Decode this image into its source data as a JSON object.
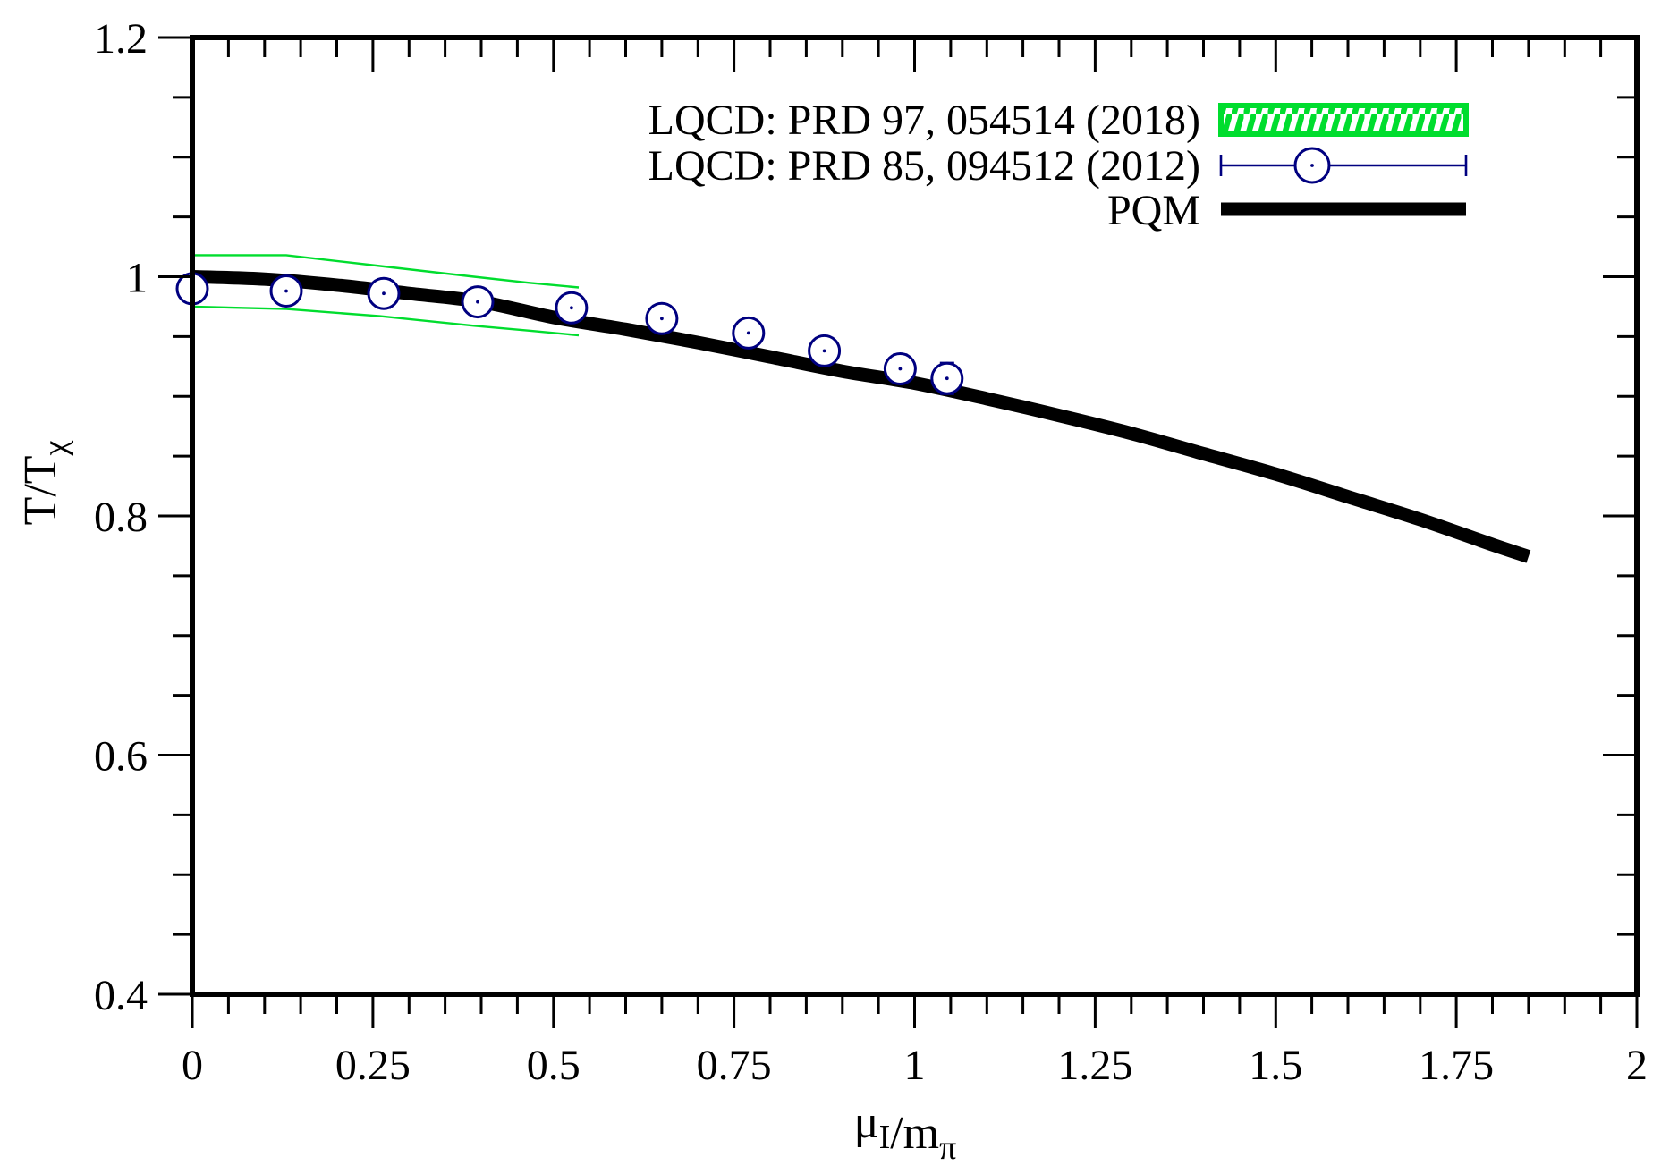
{
  "figure": {
    "background": "#ffffff",
    "border_color": "#000000"
  },
  "colors": {
    "band_green": "#00dd2e",
    "marker_navy": "#000080",
    "curve_black": "#000000"
  },
  "legend": {
    "entries": [
      {
        "label": "LQCD: PRD 97, 054514 (2018)",
        "symbol": "hatched-band",
        "color": "#00dd2e"
      },
      {
        "label": "LQCD: PRD 85, 094512 (2012)",
        "symbol": "errorbar-circle",
        "color": "#000080"
      },
      {
        "label": "PQM",
        "symbol": "thick-line",
        "color": "#000000"
      }
    ]
  },
  "chart_data": {
    "type": "line",
    "title": "",
    "xlabel": "mu_I/m_pi",
    "ylabel": "T/T_chi",
    "xlabel_parts": [
      {
        "text": "μ",
        "sub": false
      },
      {
        "text": "I",
        "sub": true
      },
      {
        "text": "/m",
        "sub": false
      },
      {
        "text": "π",
        "sub": true
      }
    ],
    "ylabel_parts": [
      {
        "text": "T/T",
        "sub": false
      },
      {
        "text": "χ",
        "sub": true
      }
    ],
    "xlim": [
      0,
      2
    ],
    "ylim": [
      0.4,
      1.2
    ],
    "x_ticks": [
      {
        "v": 0,
        "label": "0"
      },
      {
        "v": 0.25,
        "label": "0.25"
      },
      {
        "v": 0.5,
        "label": "0.5"
      },
      {
        "v": 0.75,
        "label": "0.75"
      },
      {
        "v": 1,
        "label": "1"
      },
      {
        "v": 1.25,
        "label": "1.25"
      },
      {
        "v": 1.5,
        "label": "1.5"
      },
      {
        "v": 1.75,
        "label": "1.75"
      },
      {
        "v": 2,
        "label": "2"
      }
    ],
    "y_ticks": [
      {
        "v": 1.2,
        "label": "1.2"
      },
      {
        "v": 1.0,
        "label": "1"
      },
      {
        "v": 0.8,
        "label": "0.8"
      },
      {
        "v": 0.6,
        "label": "0.6"
      },
      {
        "v": 0.4,
        "label": "0.4"
      }
    ],
    "x_minor_step": 0.05,
    "y_minor_step": 0.05,
    "grid": false,
    "legend_position": "top-right-inside",
    "series": [
      {
        "name": "LQCD: PRD 97, 054514 (2018)",
        "type": "band",
        "color": "#00dd2e",
        "x": [
          0.0,
          0.13,
          0.26,
          0.39,
          0.465,
          0.535
        ],
        "y_upper": [
          1.018,
          1.018,
          1.009,
          1.0,
          0.995,
          0.991
        ],
        "y_lower": [
          0.975,
          0.973,
          0.967,
          0.959,
          0.955,
          0.951
        ]
      },
      {
        "name": "LQCD: PRD 85, 094512 (2012)",
        "type": "scatter",
        "color": "#000080",
        "points": [
          {
            "x": 0.0,
            "y": 0.99,
            "err": 0.01
          },
          {
            "x": 0.13,
            "y": 0.988,
            "err": 0.008
          },
          {
            "x": 0.265,
            "y": 0.986,
            "err": 0.012
          },
          {
            "x": 0.395,
            "y": 0.979,
            "err": 0.01
          },
          {
            "x": 0.525,
            "y": 0.974,
            "err": 0.01
          },
          {
            "x": 0.65,
            "y": 0.965,
            "err": 0.008
          },
          {
            "x": 0.77,
            "y": 0.953,
            "err": 0.008
          },
          {
            "x": 0.875,
            "y": 0.938,
            "err": 0.008
          },
          {
            "x": 0.98,
            "y": 0.923,
            "err": 0.012
          },
          {
            "x": 1.045,
            "y": 0.915,
            "err": 0.013
          }
        ]
      },
      {
        "name": "PQM",
        "type": "line",
        "color": "#000000",
        "x": [
          0,
          0.1,
          0.2,
          0.3,
          0.4,
          0.5,
          0.6,
          0.7,
          0.8,
          0.9,
          1.0,
          1.1,
          1.2,
          1.3,
          1.4,
          1.5,
          1.6,
          1.7,
          1.8,
          1.85
        ],
        "y": [
          1.0,
          0.998,
          0.993,
          0.986,
          0.979,
          0.966,
          0.956,
          0.945,
          0.933,
          0.921,
          0.911,
          0.898,
          0.884,
          0.869,
          0.852,
          0.835,
          0.816,
          0.797,
          0.776,
          0.766
        ]
      }
    ]
  }
}
